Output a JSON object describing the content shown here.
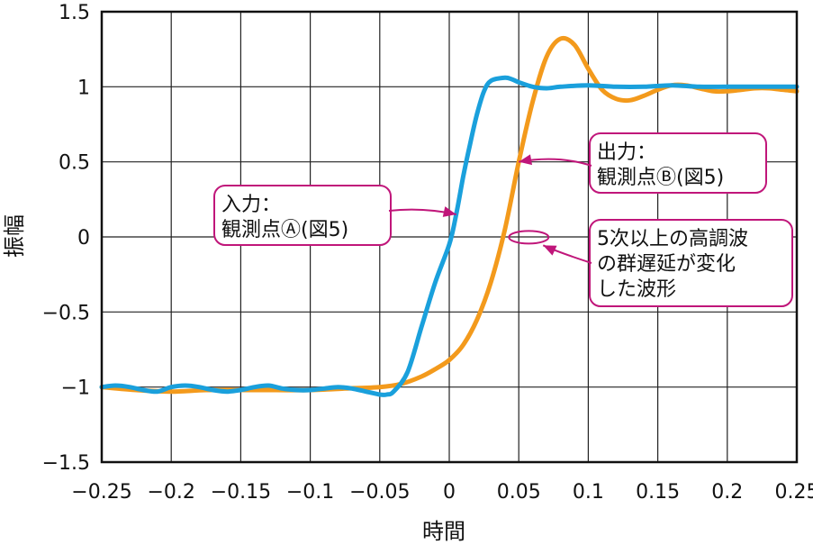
{
  "chart_data": {
    "type": "line",
    "xlabel": "時間",
    "ylabel": "振幅",
    "xlim": [
      -0.25,
      0.25
    ],
    "ylim": [
      -1.5,
      1.5
    ],
    "grid": true,
    "x_ticks": [
      -0.25,
      -0.2,
      -0.15,
      -0.1,
      -0.05,
      0,
      0.05,
      0.1,
      0.15,
      0.2,
      0.25
    ],
    "x_tick_labels": [
      "−0.25",
      "−0.2",
      "−0.15",
      "−0.1",
      "−0.05",
      "0",
      "0.05",
      "0.1",
      "0.15",
      "0.2",
      "0.25"
    ],
    "y_ticks": [
      -1.5,
      -1,
      -0.5,
      0,
      0.5,
      1,
      1.5
    ],
    "y_tick_labels": [
      "−1.5",
      "−1",
      "−0.5",
      "0",
      "0.5",
      "1",
      "1.5"
    ],
    "series": [
      {
        "color": "#f39a1c",
        "points": [
          [
            -0.25,
            -1.0
          ],
          [
            -0.225,
            -1.02
          ],
          [
            -0.2,
            -1.03
          ],
          [
            -0.175,
            -1.02
          ],
          [
            -0.15,
            -1.02
          ],
          [
            -0.125,
            -1.02
          ],
          [
            -0.1,
            -1.02
          ],
          [
            -0.075,
            -1.01
          ],
          [
            -0.05,
            -1.0
          ],
          [
            -0.035,
            -0.98
          ],
          [
            -0.02,
            -0.93
          ],
          [
            -0.01,
            -0.88
          ],
          [
            0.0,
            -0.82
          ],
          [
            0.01,
            -0.72
          ],
          [
            0.02,
            -0.55
          ],
          [
            0.03,
            -0.3
          ],
          [
            0.04,
            0.05
          ],
          [
            0.05,
            0.5
          ],
          [
            0.06,
            0.9
          ],
          [
            0.07,
            1.2
          ],
          [
            0.08,
            1.32
          ],
          [
            0.09,
            1.28
          ],
          [
            0.1,
            1.12
          ],
          [
            0.11,
            0.98
          ],
          [
            0.12,
            0.92
          ],
          [
            0.13,
            0.91
          ],
          [
            0.14,
            0.94
          ],
          [
            0.15,
            0.98
          ],
          [
            0.16,
            1.01
          ],
          [
            0.17,
            1.01
          ],
          [
            0.18,
            0.99
          ],
          [
            0.19,
            0.97
          ],
          [
            0.2,
            0.97
          ],
          [
            0.21,
            0.98
          ],
          [
            0.22,
            0.99
          ],
          [
            0.23,
            0.99
          ],
          [
            0.24,
            0.98
          ],
          [
            0.25,
            0.97
          ]
        ]
      },
      {
        "color": "#1aa0dc",
        "points": [
          [
            -0.25,
            -1.0
          ],
          [
            -0.24,
            -0.99
          ],
          [
            -0.23,
            -1.0
          ],
          [
            -0.22,
            -1.02
          ],
          [
            -0.21,
            -1.03
          ],
          [
            -0.2,
            -1.0
          ],
          [
            -0.19,
            -0.99
          ],
          [
            -0.18,
            -1.0
          ],
          [
            -0.17,
            -1.02
          ],
          [
            -0.16,
            -1.03
          ],
          [
            -0.15,
            -1.02
          ],
          [
            -0.14,
            -1.0
          ],
          [
            -0.13,
            -0.99
          ],
          [
            -0.12,
            -1.01
          ],
          [
            -0.11,
            -1.02
          ],
          [
            -0.1,
            -1.02
          ],
          [
            -0.09,
            -1.01
          ],
          [
            -0.08,
            -1.0
          ],
          [
            -0.07,
            -1.01
          ],
          [
            -0.06,
            -1.03
          ],
          [
            -0.05,
            -1.05
          ],
          [
            -0.045,
            -1.05
          ],
          [
            -0.04,
            -1.03
          ],
          [
            -0.03,
            -0.9
          ],
          [
            -0.02,
            -0.6
          ],
          [
            -0.01,
            -0.3
          ],
          [
            0.0,
            -0.05
          ],
          [
            0.005,
            0.15
          ],
          [
            0.01,
            0.4
          ],
          [
            0.015,
            0.62
          ],
          [
            0.02,
            0.82
          ],
          [
            0.025,
            0.97
          ],
          [
            0.03,
            1.04
          ],
          [
            0.04,
            1.06
          ],
          [
            0.045,
            1.05
          ],
          [
            0.05,
            1.03
          ],
          [
            0.06,
            1.0
          ],
          [
            0.07,
            0.99
          ],
          [
            0.08,
            1.0
          ],
          [
            0.1,
            1.01
          ],
          [
            0.12,
            1.0
          ],
          [
            0.14,
            1.0
          ],
          [
            0.16,
            1.01
          ],
          [
            0.18,
            1.0
          ],
          [
            0.2,
            1.0
          ],
          [
            0.22,
            1.0
          ],
          [
            0.25,
            1.0
          ]
        ]
      }
    ],
    "annotations": [
      {
        "lines": [
          "入力：",
          "観測点Ⓐ(図5)"
        ],
        "target": [
          0.005,
          0.15
        ]
      },
      {
        "lines": [
          "出力：",
          "観測点Ⓑ(図5)"
        ],
        "target": [
          0.05,
          0.5
        ]
      },
      {
        "lines": [
          "5次以上の高調波",
          "の群遅延が変化",
          "した波形"
        ],
        "target": [
          0.052,
          -0.02
        ]
      }
    ]
  }
}
